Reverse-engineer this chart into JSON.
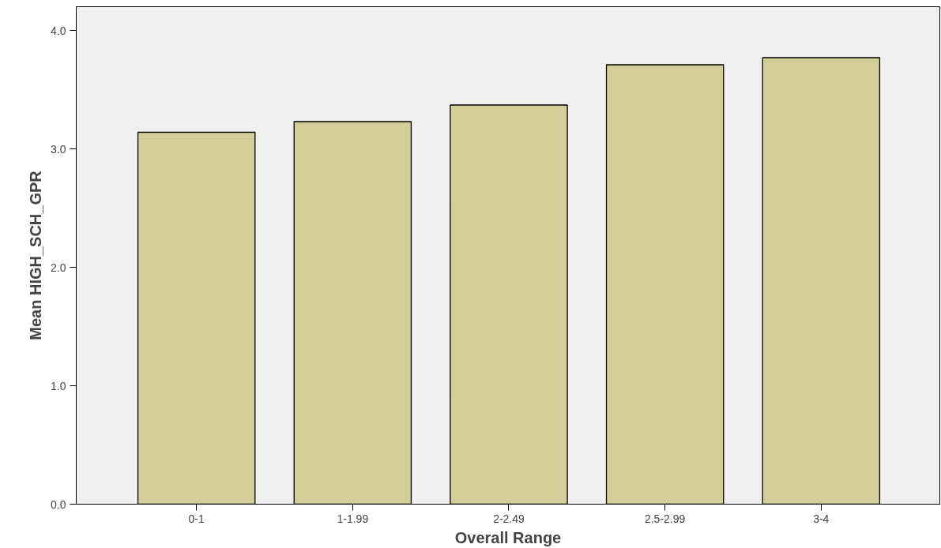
{
  "chart_data": {
    "type": "bar",
    "xlabel": "Overall Range",
    "ylabel": "Mean HIGH_SCH_GPR",
    "categories": [
      "0-1",
      "1-1.99",
      "2-2.49",
      "2.5-2.99",
      "3-4"
    ],
    "values": [
      3.14,
      3.23,
      3.37,
      3.71,
      3.77
    ],
    "color": "#d3ce97",
    "ylim": [
      0,
      4.2
    ],
    "yticks": [
      {
        "value": 0,
        "label": "0.0"
      },
      {
        "value": 1,
        "label": "1.0"
      },
      {
        "value": 2,
        "label": "2.0"
      },
      {
        "value": 3,
        "label": "3.0"
      },
      {
        "value": 4,
        "label": "4.0"
      }
    ],
    "grid": false
  }
}
